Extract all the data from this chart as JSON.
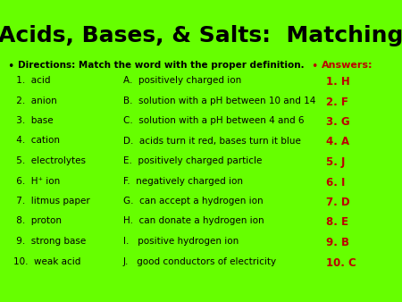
{
  "title": "Acids, Bases, & Salts:  Matching",
  "bg_color": "#66ff00",
  "title_color": "#000000",
  "title_fontsize": 18,
  "directions_label": "Directions: Match the word with the proper definition.",
  "answers_label": "Answers:",
  "left_items": [
    " 1.  acid",
    " 2.  anion",
    " 3.  base",
    " 4.  cation",
    " 5.  electrolytes",
    " 6.  H⁺ ion",
    " 7.  litmus paper",
    " 8.  proton",
    " 9.  strong base",
    "10.  weak acid"
  ],
  "right_items": [
    "A.  positively charged ion",
    "B.  solution with a pH between 10 and 14",
    "C.  solution with a pH between 4 and 6",
    "D.  acids turn it red, bases turn it blue",
    "E.  positively charged particle",
    "F.  negatively charged ion",
    "G.  can accept a hydrogen ion",
    "H.  can donate a hydrogen ion",
    "I.   positive hydrogen ion",
    "J.   good conductors of electricity"
  ],
  "answers": [
    "1. H",
    "2. F",
    "3. G",
    "4. A",
    "5. J",
    "6. I",
    "7. D",
    "8. E",
    "9. B",
    "10. C"
  ],
  "item_color": "#000000",
  "answer_color": "#bb0000",
  "bullet_color": "#000000",
  "answer_header_color": "#bb0000",
  "item_fontsize": 7.5,
  "answer_fontsize": 8.5
}
